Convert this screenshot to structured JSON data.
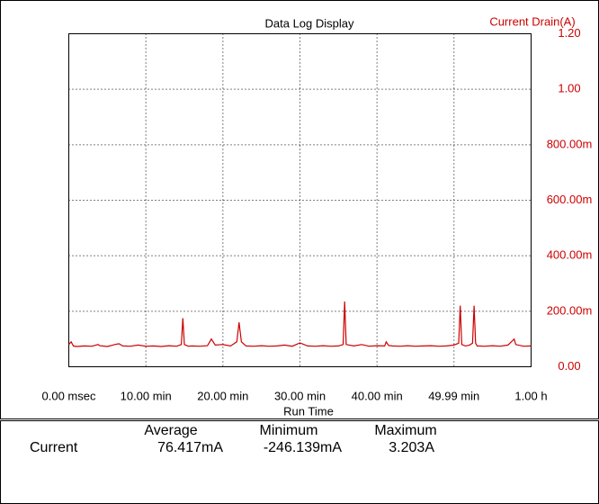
{
  "chart_data": {
    "type": "line",
    "title": "Data Log Display",
    "y_label": "Current Drain(A)",
    "x_label": "Run Time",
    "color": "#cc0000",
    "grid": true,
    "xlim": [
      0,
      60
    ],
    "ylim": [
      0,
      1.2
    ],
    "xticks": [
      {
        "value": 0,
        "label": "0.00 msec"
      },
      {
        "value": 10,
        "label": "10.00 min"
      },
      {
        "value": 20,
        "label": "20.00 min"
      },
      {
        "value": 30,
        "label": "30.00 min"
      },
      {
        "value": 40,
        "label": "40.00 min"
      },
      {
        "value": 49.99,
        "label": "49.99 min"
      },
      {
        "value": 60,
        "label": "1.00 h"
      }
    ],
    "yticks": [
      {
        "value": 0,
        "label": "0.00"
      },
      {
        "value": 0.2,
        "label": "200.00m"
      },
      {
        "value": 0.4,
        "label": "400.00m"
      },
      {
        "value": 0.6,
        "label": "600.00m"
      },
      {
        "value": 0.8,
        "label": "800.00m"
      },
      {
        "value": 1,
        "label": "1.00"
      },
      {
        "value": 1.2,
        "label": "1.20"
      }
    ],
    "x": [
      0,
      0.3,
      0.6,
      1,
      2,
      3,
      3.8,
      4,
      5,
      6,
      6.5,
      7,
      8,
      9,
      10,
      11,
      12,
      13,
      14,
      14.6,
      14.8,
      15,
      15.5,
      16,
      17,
      18,
      18.5,
      19,
      20,
      21,
      21.8,
      22.1,
      22.4,
      23,
      24,
      25,
      26,
      27,
      28,
      29,
      30,
      31,
      32,
      33,
      34,
      35,
      35.6,
      35.8,
      36,
      37,
      38,
      39,
      40,
      41,
      41.2,
      41.5,
      42,
      43,
      44,
      45,
      46,
      47,
      48,
      49,
      50,
      50.6,
      50.8,
      51,
      51.5,
      52,
      52.4,
      52.6,
      52.8,
      53,
      54,
      55,
      56,
      57,
      57.8,
      58,
      59,
      60
    ],
    "values": [
      0.08,
      0.09,
      0.075,
      0.073,
      0.075,
      0.074,
      0.08,
      0.076,
      0.073,
      0.08,
      0.083,
      0.075,
      0.074,
      0.078,
      0.074,
      0.075,
      0.073,
      0.076,
      0.074,
      0.08,
      0.175,
      0.08,
      0.074,
      0.075,
      0.074,
      0.076,
      0.1,
      0.078,
      0.08,
      0.075,
      0.09,
      0.16,
      0.09,
      0.075,
      0.074,
      0.076,
      0.074,
      0.075,
      0.078,
      0.074,
      0.086,
      0.075,
      0.074,
      0.076,
      0.074,
      0.075,
      0.08,
      0.235,
      0.08,
      0.075,
      0.08,
      0.074,
      0.076,
      0.075,
      0.09,
      0.077,
      0.075,
      0.074,
      0.076,
      0.074,
      0.075,
      0.076,
      0.074,
      0.075,
      0.078,
      0.085,
      0.22,
      0.08,
      0.075,
      0.078,
      0.085,
      0.22,
      0.085,
      0.075,
      0.074,
      0.076,
      0.074,
      0.078,
      0.1,
      0.08,
      0.074,
      0.075
    ]
  },
  "table": {
    "headers": [
      "Average",
      "Minimum",
      "Maximum"
    ],
    "rows": [
      {
        "label": "Current",
        "values": [
          "76.417mA",
          "-246.139mA",
          "3.203A"
        ]
      }
    ]
  }
}
